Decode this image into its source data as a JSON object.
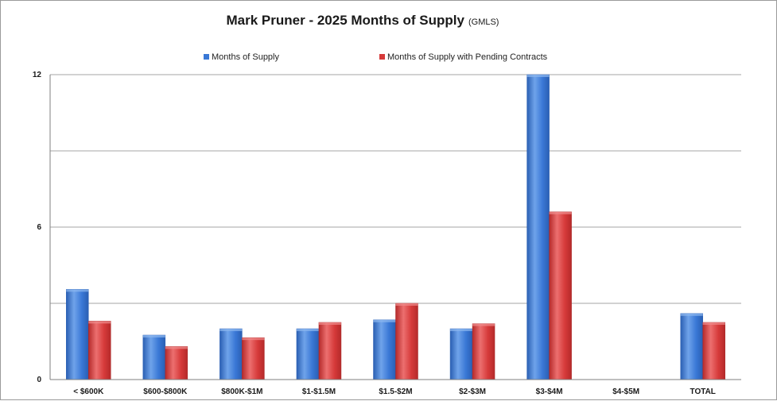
{
  "chart_data": {
    "type": "bar",
    "title": "Mark Pruner - 2025 Months of Supply",
    "subtitle": "(GMLS)",
    "categories": [
      "< $600K",
      "$600-$800K",
      "$800K-$1M",
      "$1-$1.5M",
      "$1.5-$2M",
      "$2-$3M",
      "$3-$4M",
      "$4-$5M",
      "TOTAL"
    ],
    "series": [
      {
        "name": "Months of Supply",
        "color": "#3a78d6",
        "values": [
          3.55,
          1.75,
          2.0,
          2.0,
          2.35,
          2.0,
          12.0,
          null,
          2.6
        ]
      },
      {
        "name": "Months of Supply with Pending Contracts",
        "color": "#d63a3a",
        "values": [
          2.3,
          1.3,
          1.65,
          2.25,
          3.0,
          2.2,
          6.6,
          null,
          2.25
        ]
      }
    ],
    "y_ticks": [
      0,
      6,
      12
    ],
    "ylim": [
      0,
      12
    ],
    "gridlines": [
      3,
      6,
      9,
      12
    ],
    "legend_position": "top",
    "grid": true
  }
}
